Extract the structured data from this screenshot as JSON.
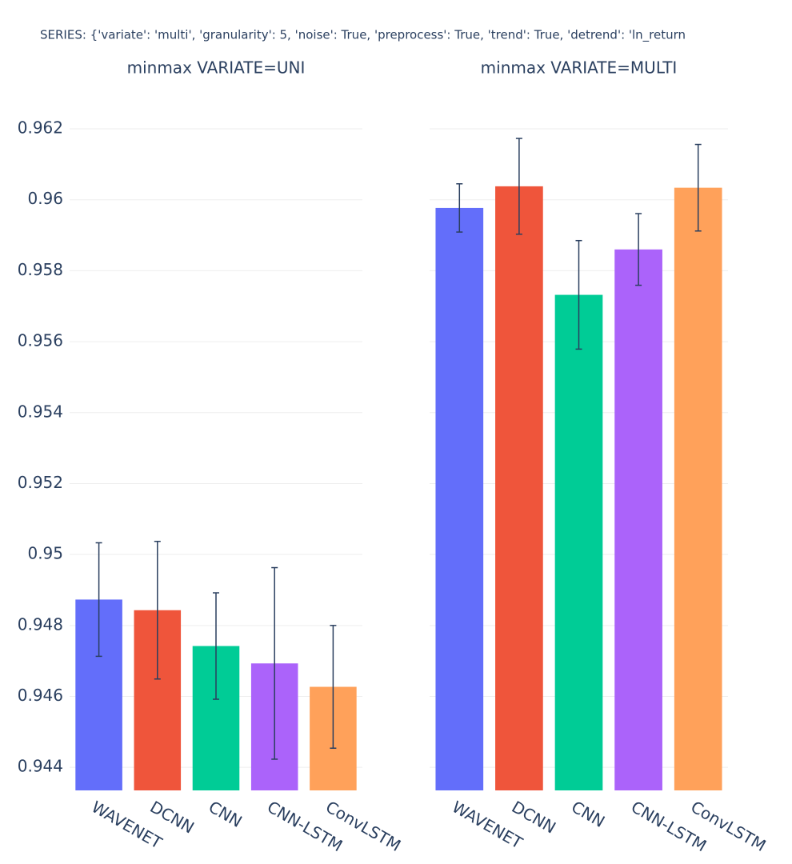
{
  "title": "SERIES: {'variate': 'multi', 'granularity': 5, 'noise': True, 'preprocess': True, 'trend': True, 'detrend': 'ln_return",
  "chart_data": [
    {
      "type": "bar",
      "title": "minmax VARIATE=UNI",
      "categories": [
        "WAVENET",
        "DCNN",
        "CNN",
        "CNN-LSTM",
        "ConvLSTM"
      ],
      "values": [
        0.94873,
        0.94843,
        0.94742,
        0.94693,
        0.94627
      ],
      "errors": [
        0.0016,
        0.00194,
        0.0015,
        0.0027,
        0.00173
      ],
      "colors": [
        "#636efa",
        "#ef553b",
        "#00cc96",
        "#ab63fa",
        "#ffa15a"
      ],
      "error_color": "#2a3f5f",
      "ylim": [
        0.94335,
        0.9627
      ],
      "yticks": [
        0.944,
        0.946,
        0.948,
        0.95,
        0.952,
        0.954,
        0.956,
        0.958,
        0.96,
        0.962
      ],
      "ytick_labels": true,
      "grid": true
    },
    {
      "type": "bar",
      "title": "minmax VARIATE=MULTI",
      "categories": [
        "WAVENET",
        "DCNN",
        "CNN",
        "CNN-LSTM",
        "ConvLSTM"
      ],
      "values": [
        0.95977,
        0.96038,
        0.95732,
        0.9586,
        0.96034
      ],
      "errors": [
        0.00068,
        0.00135,
        0.00153,
        0.00101,
        0.00122
      ],
      "colors": [
        "#636efa",
        "#ef553b",
        "#00cc96",
        "#ab63fa",
        "#ffa15a"
      ],
      "error_color": "#2a3f5f",
      "ylim": [
        0.94335,
        0.9627
      ],
      "yticks": [
        0.944,
        0.946,
        0.948,
        0.95,
        0.952,
        0.954,
        0.956,
        0.958,
        0.96,
        0.962
      ],
      "ytick_labels": false,
      "grid": true
    }
  ]
}
